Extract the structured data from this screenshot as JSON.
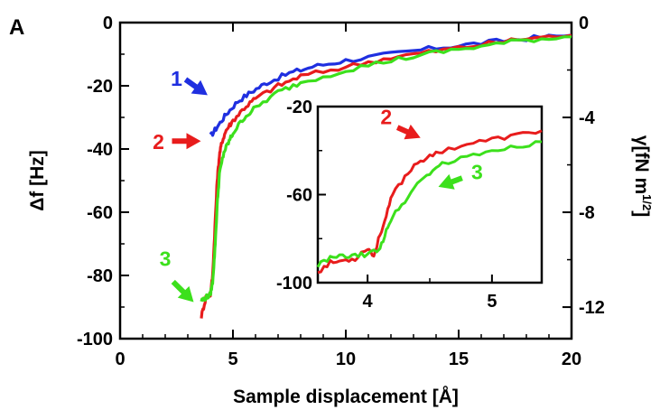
{
  "panel_label": "A",
  "chart_data": [
    {
      "type": "line",
      "xlabel": "Sample displacement [Å]",
      "ylabel": "Δf [Hz]",
      "y2label_base": "γ[fN m",
      "y2label_sup": "1/2",
      "y2label_end": "]",
      "xlim": [
        0,
        20
      ],
      "ylim": [
        -100,
        0
      ],
      "y2lim": [
        -13.33,
        0
      ],
      "xticks": [
        0,
        5,
        10,
        15,
        20
      ],
      "xtick_labels": [
        "0",
        "5",
        "10",
        "15",
        "20"
      ],
      "yticks": [
        0,
        -20,
        -40,
        -60,
        -80,
        -100
      ],
      "ytick_labels": [
        "0",
        "-20",
        "-40",
        "-60",
        "-80",
        "-100"
      ],
      "y2ticks": [
        0,
        -4,
        -8,
        -12
      ],
      "y2tick_labels": [
        "0",
        "-4",
        "-8",
        "-12"
      ],
      "grid": false,
      "series": [
        {
          "name": "1",
          "color": "#1f2fe0",
          "x": [
            4.0,
            4.3,
            4.7,
            5.2,
            5.8,
            6.5,
            7.5,
            8.5,
            10,
            12,
            14,
            16,
            18,
            20
          ],
          "y": [
            -36,
            -33,
            -29,
            -25,
            -22,
            -19,
            -16,
            -14,
            -12,
            -10,
            -8,
            -6.5,
            -5,
            -4
          ]
        },
        {
          "name": "2",
          "color": "#e81c1c",
          "x": [
            3.6,
            3.8,
            4.0,
            4.1,
            4.2,
            4.3,
            4.4,
            4.5,
            4.7,
            5.0,
            5.5,
            6.0,
            7.0,
            8.0,
            10,
            12,
            14,
            16,
            18,
            20
          ],
          "y": [
            -93,
            -87,
            -86,
            -80,
            -65,
            -50,
            -42,
            -38,
            -34,
            -31,
            -27,
            -24,
            -20,
            -17,
            -14,
            -11,
            -9,
            -7,
            -5,
            -4
          ]
        },
        {
          "name": "3",
          "color": "#3ce01c",
          "x": [
            3.6,
            3.8,
            4.0,
            4.1,
            4.2,
            4.3,
            4.4,
            4.6,
            4.8,
            5.0,
            5.5,
            6.0,
            7.0,
            8.0,
            10,
            12,
            14,
            16,
            18,
            20
          ],
          "y": [
            -88,
            -87,
            -86,
            -82,
            -72,
            -58,
            -48,
            -41,
            -38,
            -35,
            -30,
            -27,
            -22,
            -19,
            -15,
            -12,
            -9.5,
            -7.5,
            -5.5,
            -4.5
          ]
        }
      ],
      "annotations": [
        {
          "text": "1",
          "color": "#1f2fe0",
          "x": 2.5,
          "y": -20
        },
        {
          "text": "2",
          "color": "#e81c1c",
          "x": 1.7,
          "y": -40
        },
        {
          "text": "3",
          "color": "#3ce01c",
          "x": 2.0,
          "y": -77
        }
      ]
    },
    {
      "type": "line",
      "inset": true,
      "xlim": [
        3.6,
        5.4
      ],
      "ylim": [
        -100,
        -20
      ],
      "xticks": [
        4,
        5
      ],
      "xtick_labels": [
        "4",
        "5"
      ],
      "yticks": [
        -20,
        -60,
        -100
      ],
      "ytick_labels": [
        "-20",
        "-60",
        "-100"
      ],
      "grid": false,
      "series": [
        {
          "name": "2",
          "color": "#e81c1c",
          "x": [
            3.6,
            3.7,
            3.8,
            3.9,
            4.0,
            4.05,
            4.1,
            4.15,
            4.2,
            4.3,
            4.4,
            4.5,
            4.6,
            4.8,
            5.0,
            5.2,
            5.4
          ],
          "y": [
            -95,
            -91,
            -90,
            -89,
            -84,
            -88,
            -78,
            -70,
            -60,
            -52,
            -45,
            -43,
            -40,
            -37,
            -35,
            -33,
            -31
          ]
        },
        {
          "name": "3",
          "color": "#3ce01c",
          "x": [
            3.6,
            3.7,
            3.8,
            3.9,
            4.0,
            4.1,
            4.15,
            4.2,
            4.3,
            4.4,
            4.5,
            4.6,
            4.8,
            5.0,
            5.2,
            5.4
          ],
          "y": [
            -92,
            -89,
            -88,
            -88,
            -87,
            -85,
            -76,
            -70,
            -63,
            -55,
            -50,
            -46,
            -43,
            -40,
            -38,
            -36
          ]
        }
      ],
      "annotations": [
        {
          "text": "2",
          "color": "#e81c1c",
          "x": 4.15,
          "y": -28
        },
        {
          "text": "3",
          "color": "#3ce01c",
          "x": 4.88,
          "y": -53
        }
      ]
    }
  ]
}
